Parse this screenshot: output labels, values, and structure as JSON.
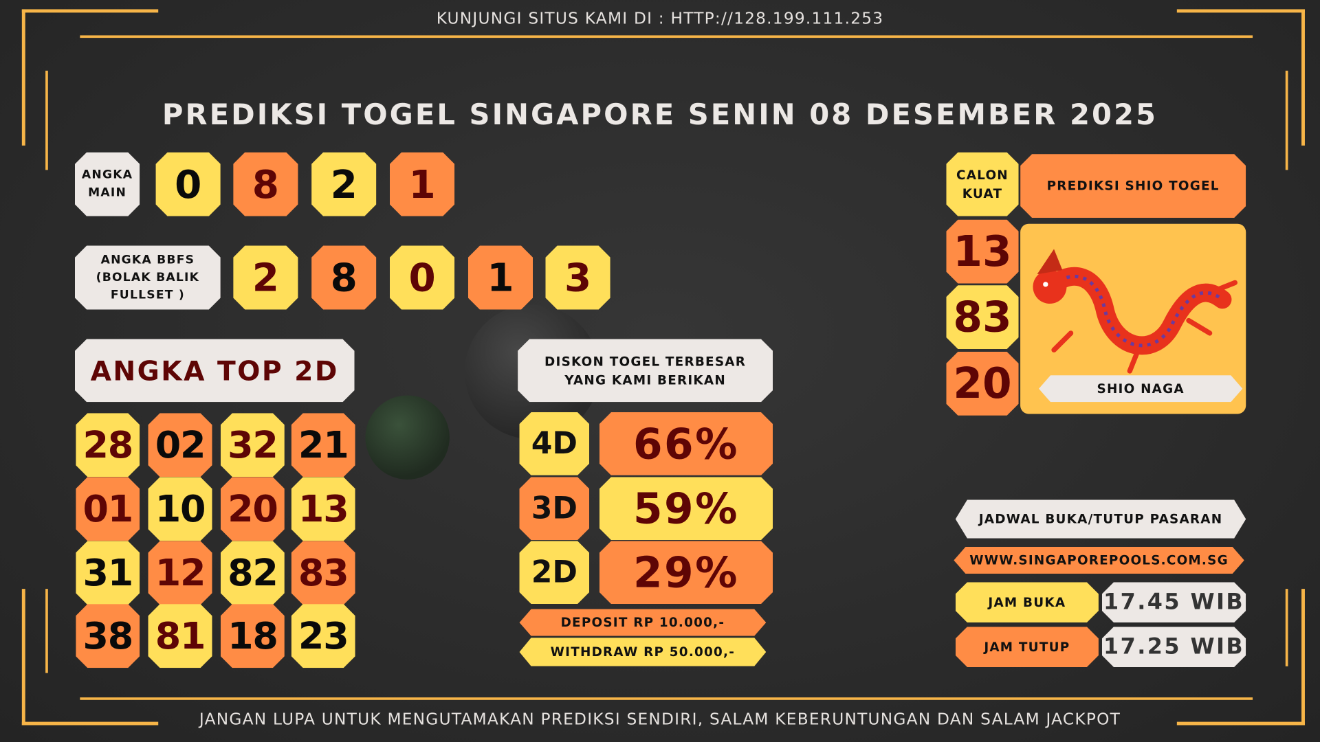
{
  "header": {
    "visit_text": "KUNJUNGI SITUS KAMI DI : HTTP://128.199.111.253",
    "title": "PREDIKSI TOGEL SINGAPORE SENIN 08 DESEMBER 2025"
  },
  "angka_main": {
    "label": "ANGKA MAIN",
    "digits": [
      {
        "v": "0",
        "bg": "Y",
        "fg": "k"
      },
      {
        "v": "8",
        "bg": "O",
        "fg": "r"
      },
      {
        "v": "2",
        "bg": "Y",
        "fg": "k"
      },
      {
        "v": "1",
        "bg": "O",
        "fg": "r"
      }
    ]
  },
  "bbfs": {
    "label": "ANGKA BBFS (BOLAK BALIK FULLSET )",
    "digits": [
      {
        "v": "2",
        "bg": "Y",
        "fg": "r"
      },
      {
        "v": "8",
        "bg": "O",
        "fg": "k"
      },
      {
        "v": "0",
        "bg": "Y",
        "fg": "r"
      },
      {
        "v": "1",
        "bg": "O",
        "fg": "k"
      },
      {
        "v": "3",
        "bg": "Y",
        "fg": "r"
      }
    ]
  },
  "top2d": {
    "label": "ANGKA TOP 2D",
    "rows": [
      [
        {
          "v": "28",
          "bg": "Y",
          "fg": "r"
        },
        {
          "v": "02",
          "bg": "O",
          "fg": "k"
        },
        {
          "v": "32",
          "bg": "Y",
          "fg": "r"
        },
        {
          "v": "21",
          "bg": "O",
          "fg": "k"
        }
      ],
      [
        {
          "v": "01",
          "bg": "O",
          "fg": "r"
        },
        {
          "v": "10",
          "bg": "Y",
          "fg": "k"
        },
        {
          "v": "20",
          "bg": "O",
          "fg": "r"
        },
        {
          "v": "13",
          "bg": "Y",
          "fg": "r"
        }
      ],
      [
        {
          "v": "31",
          "bg": "Y",
          "fg": "k"
        },
        {
          "v": "12",
          "bg": "O",
          "fg": "r"
        },
        {
          "v": "82",
          "bg": "Y",
          "fg": "k"
        },
        {
          "v": "83",
          "bg": "O",
          "fg": "r"
        }
      ],
      [
        {
          "v": "38",
          "bg": "O",
          "fg": "k"
        },
        {
          "v": "81",
          "bg": "Y",
          "fg": "r"
        },
        {
          "v": "18",
          "bg": "O",
          "fg": "k"
        },
        {
          "v": "23",
          "bg": "Y",
          "fg": "k"
        }
      ]
    ]
  },
  "diskon": {
    "label": "DISKON TOGEL TERBESAR YANG KAMI BERIKAN",
    "rows": [
      {
        "type": "4D",
        "value": "66%",
        "lbg": "Y",
        "vbg": "O"
      },
      {
        "type": "3D",
        "value": "59%",
        "lbg": "O",
        "vbg": "Y"
      },
      {
        "type": "2D",
        "value": "29%",
        "lbg": "Y",
        "vbg": "O"
      }
    ],
    "deposit": "DEPOSIT RP 10.000,-",
    "withdraw": "WITHDRAW RP 50.000,-"
  },
  "calon_kuat": {
    "label": "CALON KUAT",
    "numbers": [
      {
        "v": "13",
        "bg": "O"
      },
      {
        "v": "83",
        "bg": "Y"
      },
      {
        "v": "20",
        "bg": "O"
      }
    ]
  },
  "shio": {
    "title": "PREDIKSI SHIO TOGEL",
    "name": "SHIO NAGA",
    "icon": "dragon-icon"
  },
  "jadwal": {
    "title": "JADWAL BUKA/TUTUP PASARAN",
    "url": "WWW.SINGAPOREPOOLS.COM.SG",
    "buka_label": "JAM BUKA",
    "buka_time": "17.45 WIB",
    "tutup_label": "JAM TUTUP",
    "tutup_time": "17.25 WIB"
  },
  "footer": {
    "text": "JANGAN LUPA UNTUK MENGUTAMAKAN PREDIKSI SENDIRI, SALAM KEBERUNTUNGAN DAN SALAM JACKPOT"
  },
  "colors": {
    "yellow": "#ffdf5a",
    "orange": "#ff8c45",
    "light": "#ede8e5",
    "accent_line": "#f7b548",
    "dark_red": "#5e0505"
  }
}
